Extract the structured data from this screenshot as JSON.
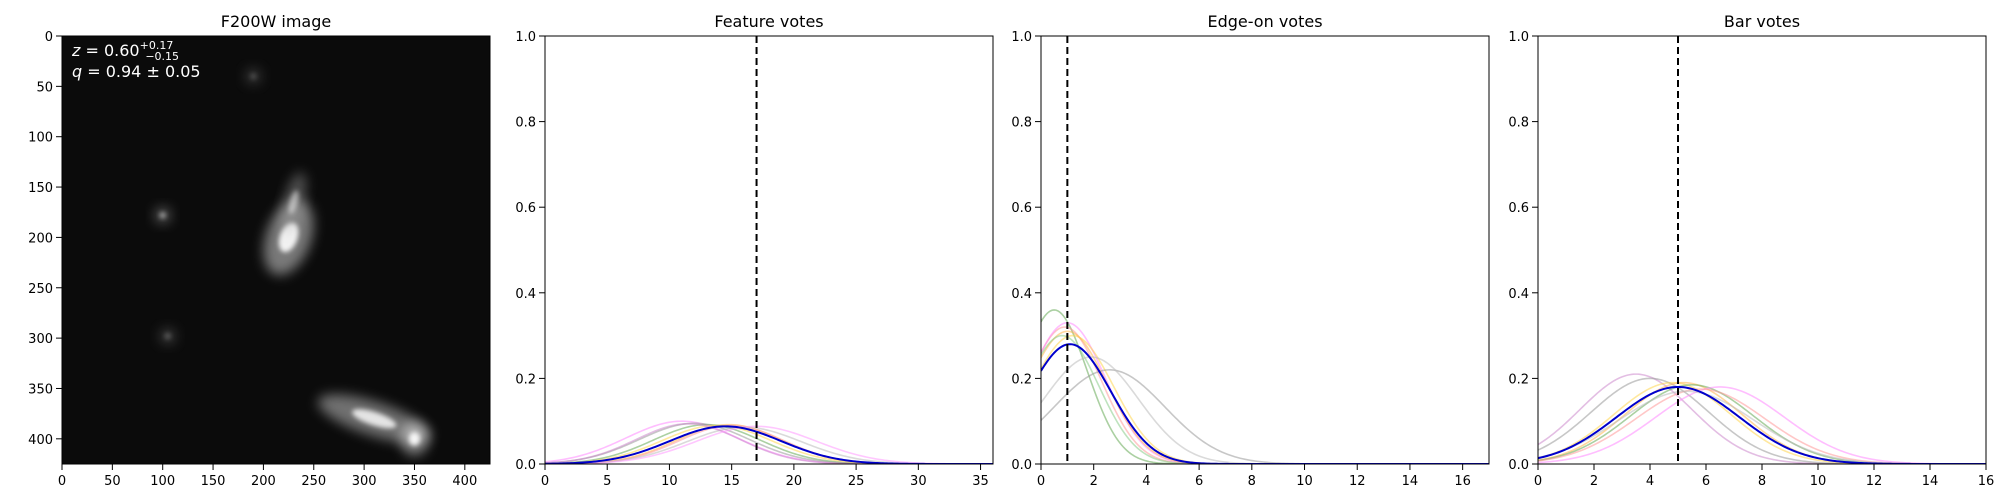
{
  "chart_data": [
    {
      "type": "image",
      "title": "F200W image",
      "xlim": [
        0,
        425
      ],
      "ylim": [
        425,
        0
      ],
      "xticks": [
        0,
        50,
        100,
        150,
        200,
        250,
        300,
        350,
        400
      ],
      "yticks": [
        0,
        50,
        100,
        150,
        200,
        250,
        300,
        350,
        400
      ],
      "annotations": {
        "z_prefix": "z",
        "z_value": " = 0.60",
        "z_upper": "+0.17",
        "z_lower": "−0.15",
        "q_prefix": "q",
        "q_value": " = 0.94 ± 0.05"
      },
      "sources": [
        {
          "x": 225,
          "y": 200,
          "intensity": 1.0
        },
        {
          "x": 230,
          "y": 165,
          "intensity": 0.55
        },
        {
          "x": 100,
          "y": 178,
          "intensity": 0.55
        },
        {
          "x": 310,
          "y": 380,
          "intensity": 0.9
        },
        {
          "x": 350,
          "y": 400,
          "intensity": 1.0
        },
        {
          "x": 190,
          "y": 40,
          "intensity": 0.2
        },
        {
          "x": 105,
          "y": 298,
          "intensity": 0.25
        }
      ]
    },
    {
      "type": "line",
      "title": "Feature votes",
      "xlim": [
        0,
        36
      ],
      "ylim": [
        0,
        1.0
      ],
      "xticks": [
        0,
        5,
        10,
        15,
        20,
        25,
        30,
        35
      ],
      "yticks": [
        0.0,
        0.2,
        0.4,
        0.6,
        0.8,
        1.0
      ],
      "vline": 17,
      "curves": [
        {
          "color": "#0000cc",
          "mu": 14.5,
          "sigma": 4.5,
          "peak": 0.088,
          "bold": true
        },
        {
          "color": "#ff88ff",
          "mu": 11.0,
          "sigma": 4.5,
          "peak": 0.1
        },
        {
          "color": "#ffb74d",
          "mu": 14.8,
          "sigma": 4.2,
          "peak": 0.092
        },
        {
          "color": "#66aa55",
          "mu": 13.0,
          "sigma": 4.3,
          "peak": 0.092
        },
        {
          "color": "#999999",
          "mu": 12.0,
          "sigma": 4.4,
          "peak": 0.095
        },
        {
          "color": "#ff9999",
          "mu": 15.0,
          "sigma": 4.2,
          "peak": 0.09
        },
        {
          "color": "#ffd54f",
          "mu": 13.8,
          "sigma": 4.4,
          "peak": 0.09
        },
        {
          "color": "#bbbbbb",
          "mu": 16.0,
          "sigma": 4.6,
          "peak": 0.086
        },
        {
          "color": "#cc88cc",
          "mu": 11.5,
          "sigma": 4.2,
          "peak": 0.094
        },
        {
          "color": "#ff99ff",
          "mu": 17.0,
          "sigma": 4.8,
          "peak": 0.088
        }
      ]
    },
    {
      "type": "line",
      "title": "Edge-on votes",
      "xlim": [
        0,
        17
      ],
      "ylim": [
        0,
        1.0
      ],
      "xticks": [
        0,
        2,
        4,
        6,
        8,
        10,
        12,
        14,
        16
      ],
      "yticks": [
        0.0,
        0.2,
        0.4,
        0.6,
        0.8,
        1.0
      ],
      "vline": 1,
      "curves": [
        {
          "color": "#0000cc",
          "mu": 1.1,
          "sigma": 1.55,
          "peak": 0.28,
          "bold": true
        },
        {
          "color": "#66aa55",
          "mu": 0.5,
          "sigma": 1.25,
          "peak": 0.36
        },
        {
          "color": "#ff9999",
          "mu": 0.9,
          "sigma": 1.4,
          "peak": 0.32
        },
        {
          "color": "#ff88ff",
          "mu": 1.0,
          "sigma": 1.45,
          "peak": 0.33
        },
        {
          "color": "#ffd54f",
          "mu": 1.2,
          "sigma": 1.55,
          "peak": 0.3
        },
        {
          "color": "#ffb74d",
          "mu": 1.0,
          "sigma": 1.5,
          "peak": 0.31
        },
        {
          "color": "#88cc88",
          "mu": 0.8,
          "sigma": 1.4,
          "peak": 0.3
        },
        {
          "color": "#999999",
          "mu": 2.6,
          "sigma": 2.1,
          "peak": 0.22
        },
        {
          "color": "#bbbbbb",
          "mu": 1.9,
          "sigma": 1.8,
          "peak": 0.25
        }
      ]
    },
    {
      "type": "line",
      "title": "Bar votes",
      "xlim": [
        0,
        16
      ],
      "ylim": [
        0,
        1.0
      ],
      "xticks": [
        0,
        2,
        4,
        6,
        8,
        10,
        12,
        14,
        16
      ],
      "yticks": [
        0.0,
        0.2,
        0.4,
        0.6,
        0.8,
        1.0
      ],
      "vline": 5,
      "curves": [
        {
          "color": "#0000cc",
          "mu": 5.0,
          "sigma": 2.2,
          "peak": 0.18,
          "bold": true
        },
        {
          "color": "#cc88cc",
          "mu": 3.5,
          "sigma": 2.0,
          "peak": 0.21
        },
        {
          "color": "#999999",
          "mu": 4.0,
          "sigma": 2.1,
          "peak": 0.2
        },
        {
          "color": "#ffd54f",
          "mu": 4.8,
          "sigma": 2.1,
          "peak": 0.19
        },
        {
          "color": "#ffb74d",
          "mu": 5.2,
          "sigma": 2.1,
          "peak": 0.19
        },
        {
          "color": "#66aa55",
          "mu": 5.5,
          "sigma": 2.2,
          "peak": 0.185
        },
        {
          "color": "#ff88ff",
          "mu": 6.5,
          "sigma": 2.3,
          "peak": 0.18
        },
        {
          "color": "#ff9999",
          "mu": 5.8,
          "sigma": 2.3,
          "peak": 0.175
        },
        {
          "color": "#bbbbbb",
          "mu": 5.3,
          "sigma": 2.4,
          "peak": 0.17
        }
      ]
    }
  ]
}
